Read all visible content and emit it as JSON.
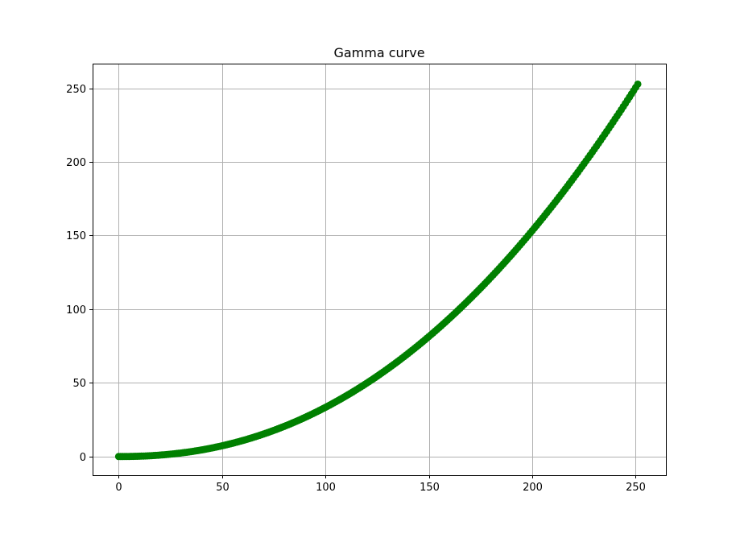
{
  "chart_data": {
    "type": "line",
    "title": "Gamma curve",
    "xlabel": "",
    "ylabel": "",
    "xlim": [
      -12.6,
      264.6
    ],
    "ylim": [
      -12.7,
      266.7
    ],
    "grid": true,
    "marker": "circle",
    "color": "#008000",
    "x_ticks": [
      0,
      50,
      100,
      150,
      200,
      250
    ],
    "y_ticks": [
      0,
      50,
      100,
      150,
      200,
      250
    ],
    "gamma": 2.2,
    "max_input": 252,
    "max_output": 255,
    "series": [
      {
        "x_start": 0,
        "x_end": 251,
        "x_step": 1
      }
    ]
  }
}
